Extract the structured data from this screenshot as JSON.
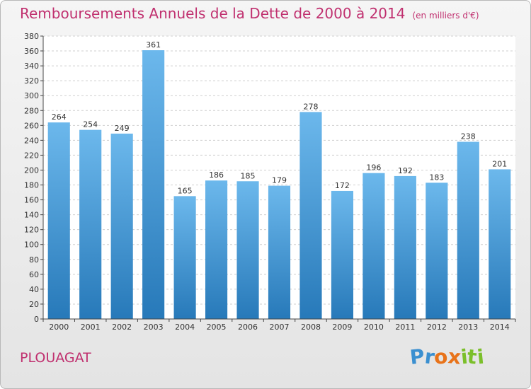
{
  "title": "Remboursements Annuels de la Dette de 2000 à 2014",
  "subtitle": "(en milliers d'€)",
  "commune": "PLOUAGAT",
  "logo": {
    "text": "Proxiti",
    "letters": [
      "P",
      "r",
      "o",
      "x",
      "i",
      "t",
      "i"
    ],
    "colors": [
      "#3a8fd0",
      "#3a8fd0",
      "#e8731a",
      "#e8731a",
      "#7bbf2a",
      "#7bbf2a",
      "#7bbf2a"
    ]
  },
  "colors": {
    "title": "#c0306f",
    "bar_top": "#6cb8ec",
    "bar_bottom": "#2779b9"
  },
  "chart_data": {
    "type": "bar",
    "categories": [
      "2000",
      "2001",
      "2002",
      "2003",
      "2004",
      "2005",
      "2006",
      "2007",
      "2008",
      "2009",
      "2010",
      "2011",
      "2012",
      "2013",
      "2014"
    ],
    "values": [
      264,
      254,
      249,
      361,
      165,
      186,
      185,
      179,
      278,
      172,
      196,
      192,
      183,
      238,
      201
    ],
    "ylim": [
      0,
      380
    ],
    "ytick_step": 20,
    "grid": true
  }
}
